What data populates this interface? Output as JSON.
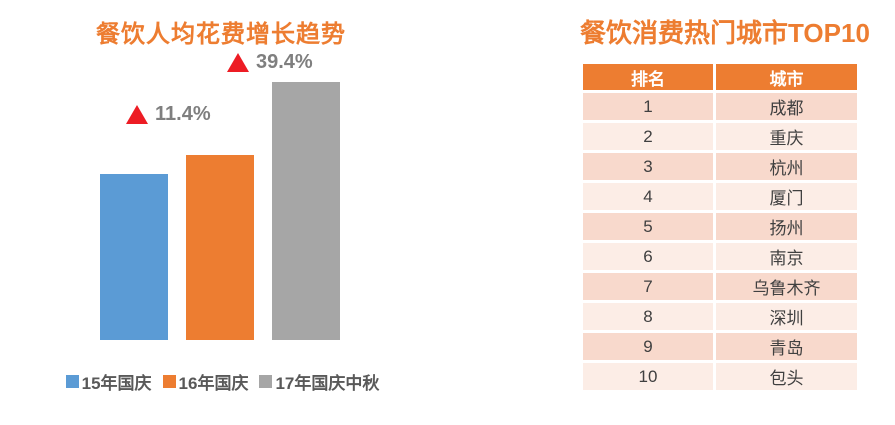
{
  "chart": {
    "title": "餐饮人均花费增长趋势",
    "annotations": [
      {
        "label": "11.4%",
        "icon": "up-triangle",
        "applies_to": "16年国庆"
      },
      {
        "label": "39.4%",
        "icon": "up-triangle",
        "applies_to": "17年国庆中秋"
      }
    ]
  },
  "chart_data": [
    {
      "type": "bar",
      "title": "餐饮人均花费增长趋势",
      "categories": [
        "15年国庆",
        "16年国庆",
        "17年国庆中秋"
      ],
      "values": [
        100,
        111.4,
        155.3
      ],
      "value_note": "relative index, 15年国庆 = 100; growth labels shown: +11.4% (16年国庆 vs 15年国庆), +39.4% (17年国庆中秋 vs 16年国庆)",
      "growth_labels": [
        null,
        "11.4%",
        "39.4%"
      ],
      "colors": [
        "#5B9BD5",
        "#ED7D31",
        "#A6A6A6"
      ],
      "legend_position": "bottom",
      "axes_hidden": true,
      "grid": false
    },
    {
      "type": "table",
      "title": "餐饮消费热门城市TOP10",
      "columns": [
        "排名",
        "城市"
      ],
      "rows": [
        [
          "1",
          "成都"
        ],
        [
          "2",
          "重庆"
        ],
        [
          "3",
          "杭州"
        ],
        [
          "4",
          "厦门"
        ],
        [
          "5",
          "扬州"
        ],
        [
          "6",
          "南京"
        ],
        [
          "7",
          "乌鲁木齐"
        ],
        [
          "8",
          "深圳"
        ],
        [
          "9",
          "青岛"
        ],
        [
          "10",
          "包头"
        ]
      ]
    }
  ],
  "table": {
    "title": "餐饮消费热门城市TOP10",
    "columns": [
      "排名",
      "城市"
    ],
    "rows": [
      [
        "1",
        "成都"
      ],
      [
        "2",
        "重庆"
      ],
      [
        "3",
        "杭州"
      ],
      [
        "4",
        "厦门"
      ],
      [
        "5",
        "扬州"
      ],
      [
        "6",
        "南京"
      ],
      [
        "7",
        "乌鲁木齐"
      ],
      [
        "8",
        "深圳"
      ],
      [
        "9",
        "青岛"
      ],
      [
        "10",
        "包头"
      ]
    ]
  },
  "palette": {
    "accent_orange": "#ED7D31",
    "bar_blue": "#5B9BD5",
    "bar_gray": "#A6A6A6",
    "triangle_red": "#ED1C24",
    "annotation_gray": "#7F7F7F",
    "legend_text": "#595959",
    "row_pink_dark": "#F8D9CC",
    "row_pink_light": "#FCEDE6",
    "body_text": "#404040"
  }
}
